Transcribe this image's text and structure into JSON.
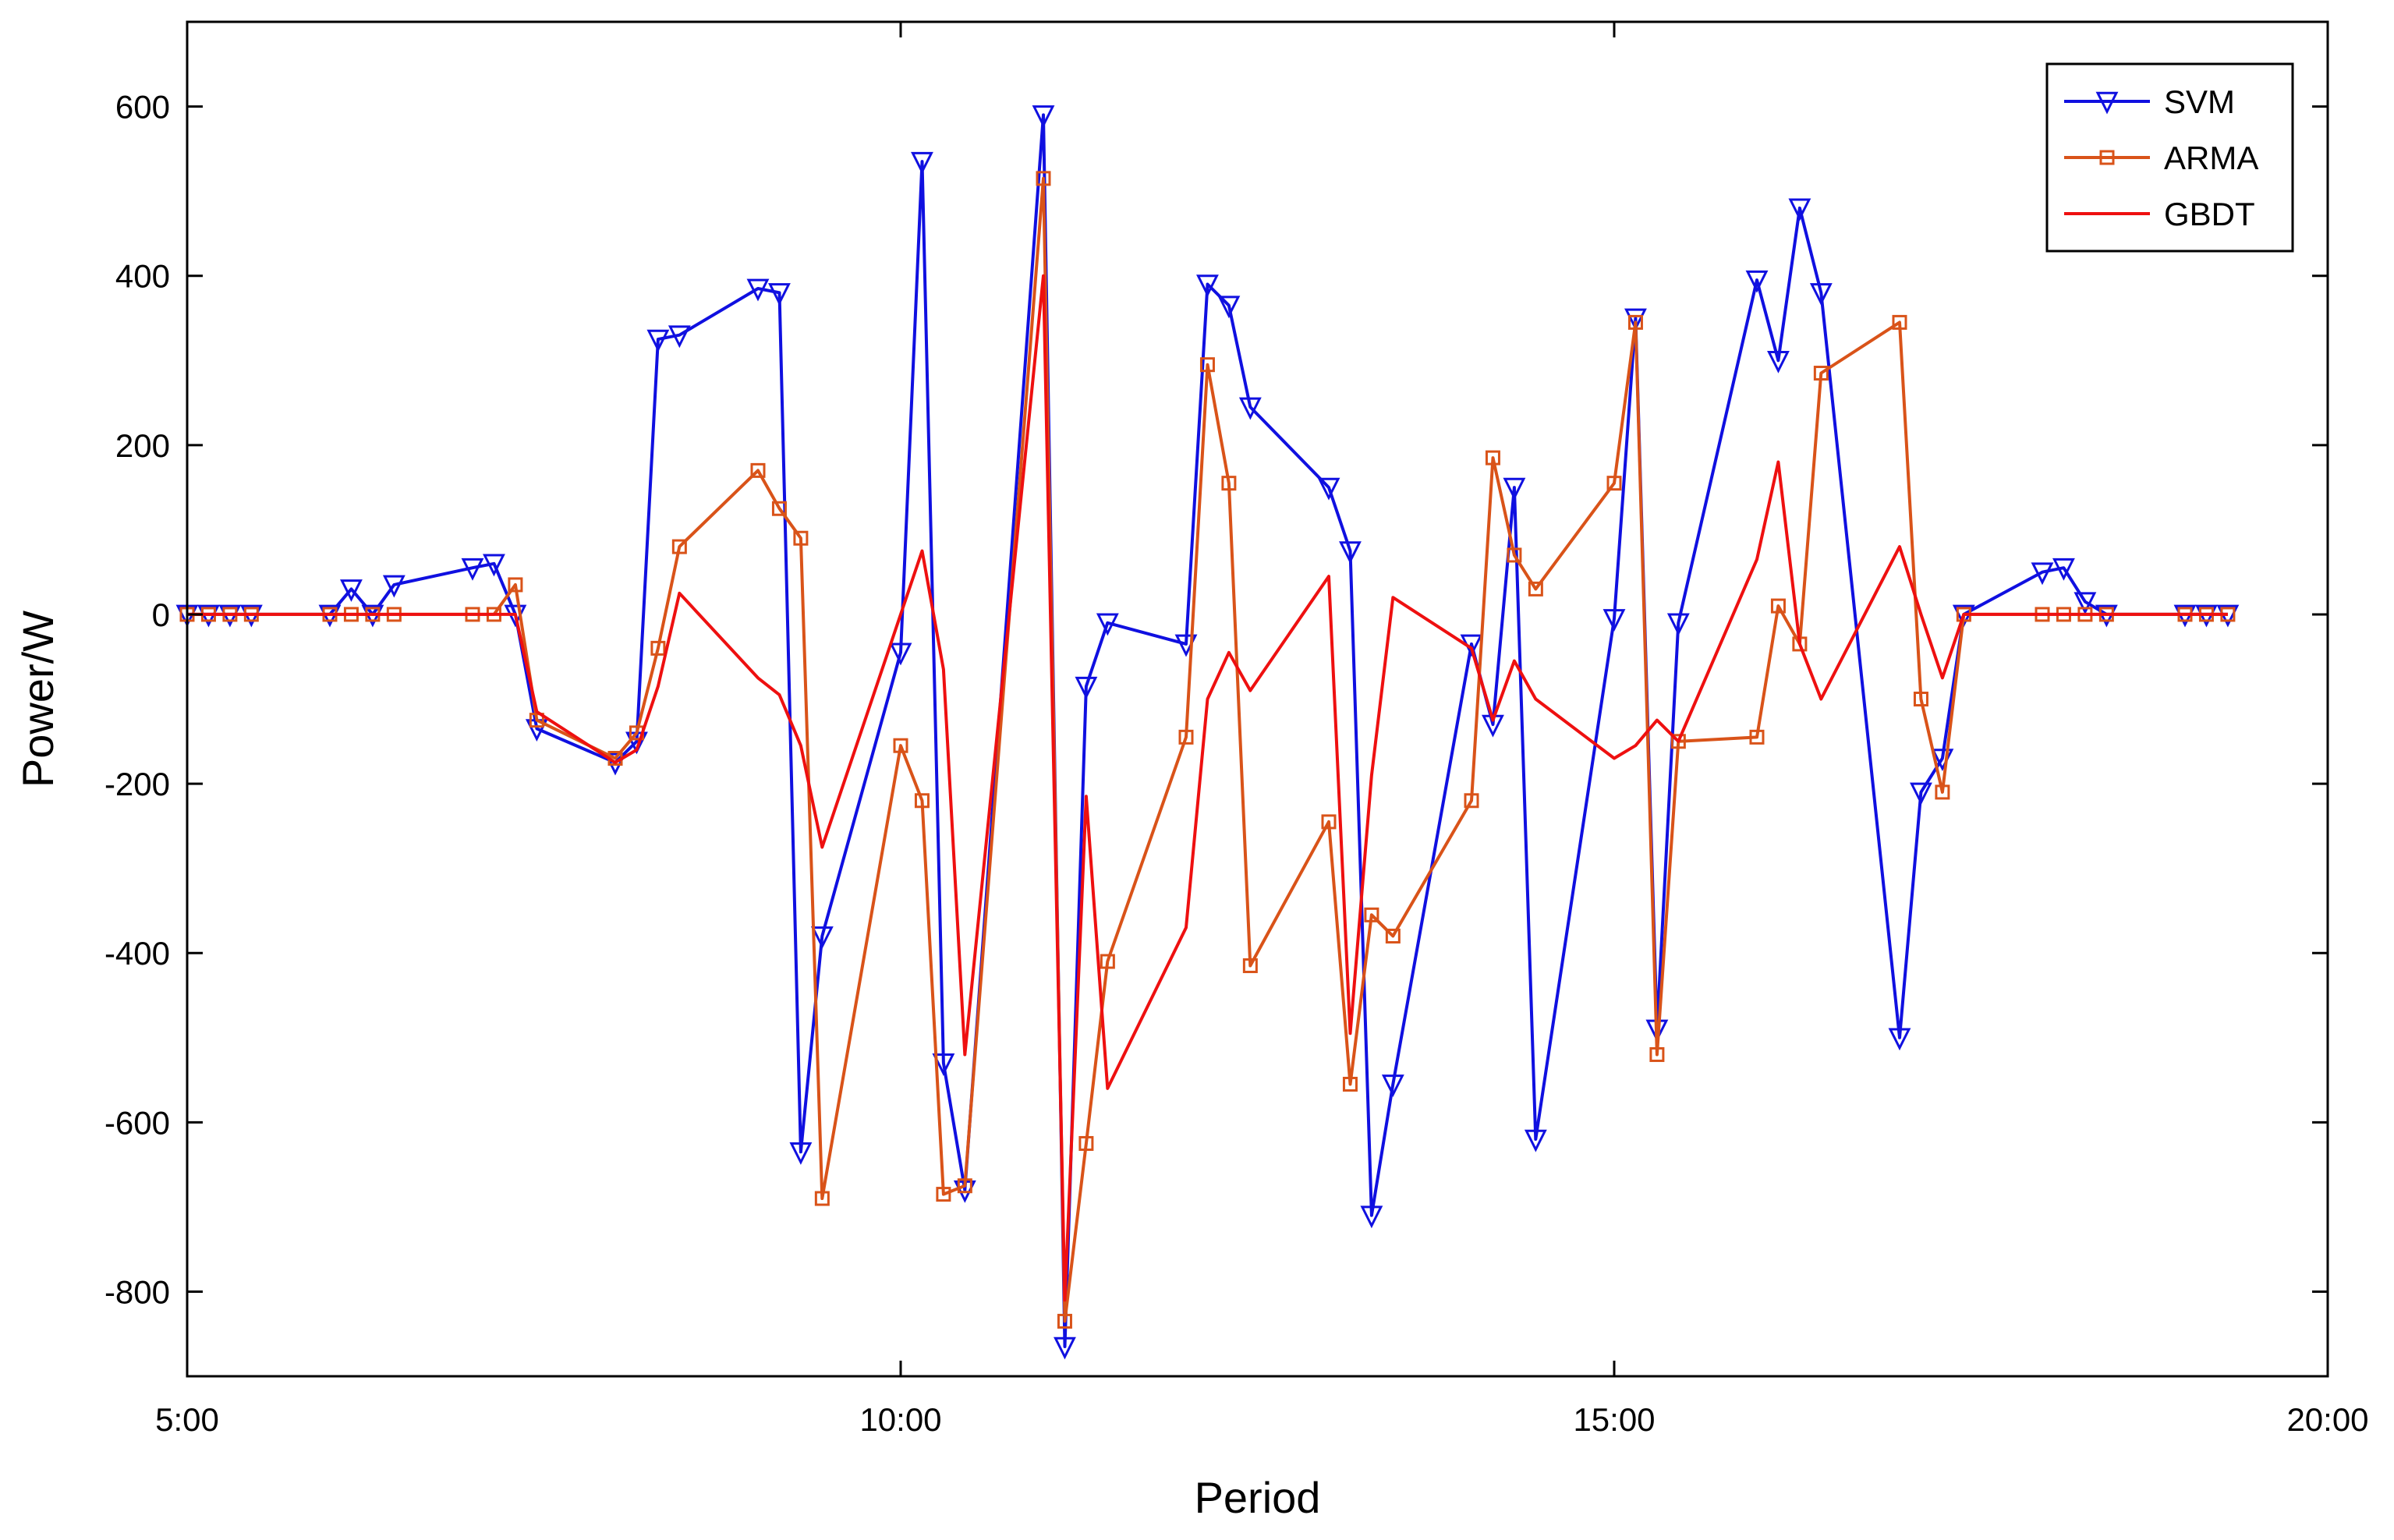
{
  "chart_data": {
    "type": "line",
    "xlabel": "Period",
    "ylabel": "Power/W",
    "xlim": [
      5.0,
      20.0
    ],
    "ylim": [
      -900,
      700
    ],
    "xticks": [
      5,
      10,
      15,
      20
    ],
    "xtick_labels": [
      "5:00",
      "10:00",
      "15:00",
      "20:00"
    ],
    "yticks": [
      600,
      400,
      200,
      0,
      -200,
      -400,
      -600,
      -800
    ],
    "ytick_labels": [
      "600",
      "400",
      "200",
      "0",
      "-200",
      "-400",
      "-600",
      "-800"
    ],
    "grid": false,
    "legend_position": "top-right",
    "series": [
      {
        "name": "SVM",
        "color": "#1010e0",
        "marker": "triangle-down",
        "x": [
          5.0,
          5.15,
          5.3,
          5.45,
          6.0,
          6.15,
          6.3,
          6.45,
          7.0,
          7.15,
          7.3,
          7.45,
          8.0,
          8.15,
          8.3,
          8.45,
          9.0,
          9.15,
          9.3,
          9.45,
          10.0,
          10.15,
          10.3,
          10.45,
          11.0,
          11.15,
          11.3,
          11.45,
          12.0,
          12.15,
          12.3,
          12.45,
          13.0,
          13.15,
          13.3,
          13.45,
          14.0,
          14.15,
          14.3,
          14.45,
          15.0,
          15.15,
          15.3,
          15.45,
          16.0,
          16.15,
          16.3,
          16.45,
          17.0,
          17.15,
          17.3,
          17.45,
          18.0,
          18.15,
          18.3,
          18.45,
          19.0,
          19.15,
          19.3
        ],
        "y": [
          0,
          0,
          0,
          0,
          0,
          30,
          0,
          35,
          55,
          60,
          0,
          -135,
          -175,
          -150,
          325,
          330,
          385,
          380,
          -635,
          -380,
          -45,
          535,
          -530,
          -680,
          590,
          -865,
          -85,
          -10,
          -35,
          390,
          365,
          245,
          150,
          75,
          -710,
          -555,
          -35,
          -130,
          150,
          -620,
          -5,
          350,
          -490,
          -10,
          395,
          300,
          480,
          380,
          -500,
          -210,
          -170,
          0,
          50,
          55,
          15,
          0,
          0,
          0,
          0
        ]
      },
      {
        "name": "ARMA",
        "color": "#d95319",
        "marker": "square",
        "x": [
          5.0,
          5.15,
          5.3,
          5.45,
          6.0,
          6.15,
          6.3,
          6.45,
          7.0,
          7.15,
          7.3,
          7.45,
          8.0,
          8.15,
          8.3,
          8.45,
          9.0,
          9.15,
          9.3,
          9.45,
          10.0,
          10.15,
          10.3,
          10.45,
          11.0,
          11.15,
          11.3,
          11.45,
          12.0,
          12.15,
          12.3,
          12.45,
          13.0,
          13.15,
          13.3,
          13.45,
          14.0,
          14.15,
          14.3,
          14.45,
          15.0,
          15.15,
          15.3,
          15.45,
          16.0,
          16.15,
          16.3,
          16.45,
          17.0,
          17.15,
          17.3,
          17.45,
          18.0,
          18.15,
          18.3,
          18.45,
          19.0,
          19.15,
          19.3
        ],
        "y": [
          0,
          0,
          0,
          0,
          0,
          0,
          0,
          0,
          0,
          0,
          35,
          -125,
          -170,
          -140,
          -40,
          80,
          170,
          125,
          90,
          -690,
          -155,
          -220,
          -685,
          -675,
          515,
          -835,
          -625,
          -410,
          -145,
          295,
          155,
          -415,
          -245,
          -555,
          -355,
          -380,
          -220,
          185,
          70,
          30,
          155,
          345,
          -520,
          -150,
          -145,
          10,
          -35,
          285,
          345,
          -100,
          -210,
          0,
          0,
          0,
          0,
          0,
          0,
          0,
          0
        ]
      },
      {
        "name": "GBDT",
        "color": "#ee1010",
        "marker": "none",
        "x": [
          5.0,
          5.15,
          5.3,
          5.45,
          6.0,
          6.15,
          6.3,
          6.45,
          7.0,
          7.15,
          7.3,
          7.45,
          8.0,
          8.15,
          8.3,
          8.45,
          9.0,
          9.15,
          9.3,
          9.45,
          10.0,
          10.15,
          10.3,
          10.45,
          11.0,
          11.15,
          11.3,
          11.45,
          12.0,
          12.15,
          12.3,
          12.45,
          13.0,
          13.15,
          13.3,
          13.45,
          14.0,
          14.15,
          14.3,
          14.45,
          15.0,
          15.15,
          15.3,
          15.45,
          16.0,
          16.15,
          16.3,
          16.45,
          17.0,
          17.15,
          17.3,
          17.45,
          18.0,
          18.15,
          18.3,
          18.45,
          19.0,
          19.15,
          19.3
        ],
        "y": [
          0,
          0,
          0,
          0,
          0,
          0,
          0,
          0,
          0,
          0,
          0,
          -115,
          -175,
          -160,
          -85,
          25,
          -75,
          -95,
          -155,
          -275,
          0,
          75,
          -65,
          -520,
          400,
          -810,
          -215,
          -560,
          -370,
          -100,
          -45,
          -90,
          45,
          -495,
          -190,
          20,
          -40,
          -125,
          -55,
          -100,
          -170,
          -155,
          -125,
          -150,
          65,
          180,
          -35,
          -100,
          80,
          0,
          -75,
          0,
          0,
          0,
          0,
          0,
          0,
          0,
          0
        ]
      }
    ]
  }
}
